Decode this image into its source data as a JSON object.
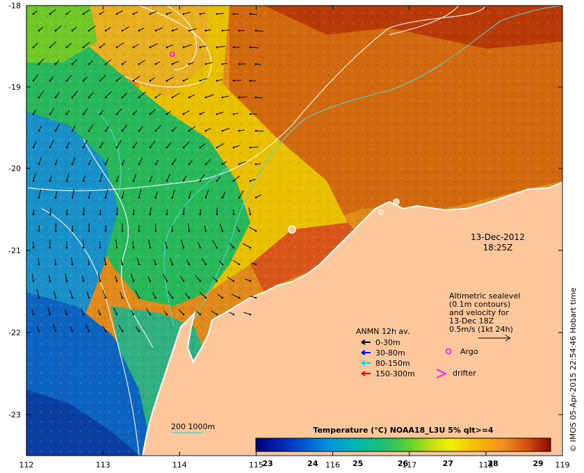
{
  "map": {
    "timestamp_date": "13-Dec-2012",
    "timestamp_time": "18:25Z",
    "lon_ticks": [
      "112",
      "113",
      "114",
      "115",
      "116",
      "117",
      "118",
      "119"
    ],
    "lat_ticks": [
      "-18",
      "-19",
      "-20",
      "-21",
      "-22",
      "-23"
    ],
    "credit": "© IMOS 05-Apr-2015 22:54:46 Hobart time",
    "altimetry_note": [
      "Altimetric sealevel",
      "(0.1m contours)",
      "and velocity for",
      "13-Dec 18Z",
      "0.5m/s (1kt 24h)"
    ],
    "argo_label": "Argo",
    "drifter_label": "drifter",
    "isobath_label": "200  1000m"
  },
  "legend": {
    "title": "ANMN 12h av.",
    "items": [
      {
        "label": "0-30m",
        "color": "#000000"
      },
      {
        "label": "30-80m",
        "color": "#0000ff"
      },
      {
        "label": "80-150m",
        "color": "#00e0e0"
      },
      {
        "label": "150-300m",
        "color": "#ff0000"
      }
    ]
  },
  "colorbar": {
    "title": "Temperature (°C) NOAA18_L3U 5% qlt>=4",
    "ticks": [
      "23",
      "24",
      "25",
      "26",
      "27",
      "28",
      "29"
    ]
  },
  "colors": {
    "land": "#fcc89b",
    "coast": "#ffffff",
    "argo": "#ff00ff",
    "drifter": "#ff00ff",
    "isobath": "#4fd6d0"
  }
}
